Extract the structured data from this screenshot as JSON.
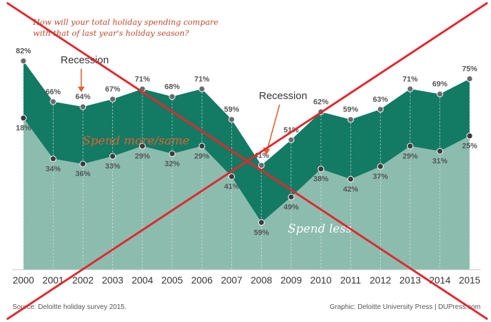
{
  "chart_data": {
    "type": "area",
    "title": "How will your total holiday spending compare with that of last year's holiday season?",
    "x": [
      "2000",
      "2001",
      "2002",
      "2003",
      "2004",
      "2005",
      "2006",
      "2007",
      "2008",
      "2009",
      "2010",
      "2011",
      "2012",
      "2013",
      "2014",
      "2015"
    ],
    "series": [
      {
        "name": "Spend more/same",
        "values": [
          82,
          66,
          64,
          67,
          71,
          68,
          71,
          59,
          41,
          51,
          62,
          59,
          63,
          71,
          69,
          75
        ],
        "labels": [
          "82%",
          "66%",
          "64%",
          "67%",
          "71%",
          "68%",
          "71%",
          "59%",
          "41%",
          "51%",
          "62%",
          "59%",
          "63%",
          "71%",
          "69%",
          "75%"
        ],
        "color": "#137a63"
      },
      {
        "name": "Spend less",
        "values": [
          18,
          34,
          36,
          33,
          29,
          32,
          29,
          41,
          59,
          49,
          38,
          42,
          37,
          29,
          31,
          25
        ],
        "labels": [
          "18%",
          "34%",
          "36%",
          "33%",
          "29%",
          "32%",
          "29%",
          "41%",
          "59%",
          "49%",
          "38%",
          "42%",
          "37%",
          "29%",
          "31%",
          "25%"
        ],
        "color": "#8cbcae"
      }
    ],
    "annotations": [
      {
        "text": "Recession",
        "x": "2002"
      },
      {
        "text": "Recession",
        "x": "2008"
      }
    ],
    "ylim": [
      0,
      100
    ]
  },
  "footer": {
    "source": "Source: Deloitte holiday survey 2015.",
    "credit": "Graphic: Deloitte University Press | DUPress.com"
  },
  "colors": {
    "dark_area": "#137a63",
    "light_area": "#8cbcae",
    "pale_area": "#dbece6",
    "cross": "#e0282e",
    "accent_text": "#c0492a"
  }
}
